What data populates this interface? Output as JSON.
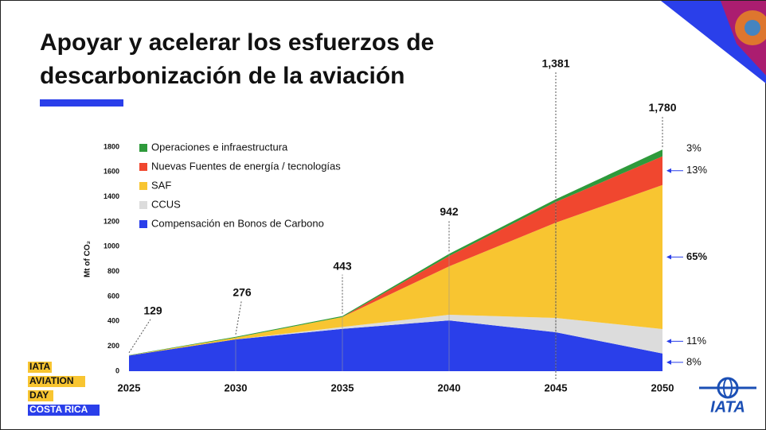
{
  "slide": {
    "title_lines": [
      "Apoyar y acelerar los esfuerzos de",
      "descarbonización de la aviación"
    ],
    "badge": [
      "IATA",
      "AVIATION",
      "DAY",
      "COSTA RICA"
    ],
    "logo": "IATA"
  },
  "chart_data": {
    "type": "stacked_area",
    "y_label": "Mt of CO₂",
    "x": [
      2025,
      2030,
      2035,
      2040,
      2045,
      2050
    ],
    "xlim": [
      2025,
      2050
    ],
    "xticks": [
      2025,
      2030,
      2035,
      2040,
      2045,
      2050
    ],
    "xgrid": true,
    "ylim": [
      0,
      1800
    ],
    "yticks": [
      0,
      200,
      400,
      600,
      800,
      1000,
      1200,
      1400,
      1600,
      1800
    ],
    "totals": [
      129,
      276,
      443,
      942,
      1381,
      1780
    ],
    "total_labels": [
      "129",
      "276",
      "443",
      "942",
      "1,381",
      "1,780"
    ],
    "legend": "upper left",
    "series": [
      {
        "name": "Compensación en Bonos de Carbono",
        "color": "#2a3fea",
        "values": [
          125,
          255,
          340,
          408,
          313,
          142
        ],
        "end_label": "8%",
        "end_arrow": true
      },
      {
        "name": "CCUS",
        "color": "#dcdcdc",
        "values": [
          0,
          0,
          15,
          45,
          115,
          196
        ],
        "end_label": "11%",
        "end_arrow": true
      },
      {
        "name": "SAF",
        "color": "#f8c531",
        "values": [
          2,
          15,
          80,
          389,
          765,
          1157
        ],
        "end_label": "65%",
        "end_arrow": true
      },
      {
        "name": "Nuevas Fuentes de energía / tecnologías",
        "color": "#f0472f",
        "values": [
          0,
          0,
          0,
          83,
          166,
          231
        ],
        "end_label": "13%",
        "end_arrow": true
      },
      {
        "name": "Operaciones e infraestructura",
        "color": "#2e9a3b",
        "values": [
          2,
          6,
          8,
          17,
          22,
          54
        ],
        "end_label": "3%",
        "end_arrow": false
      }
    ]
  }
}
